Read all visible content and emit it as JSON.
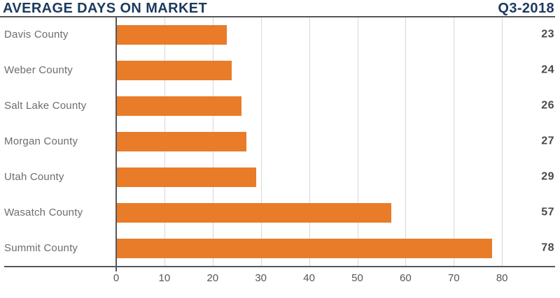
{
  "header": {
    "title": "AVERAGE DAYS ON MARKET",
    "period": "Q3-2018"
  },
  "chart_data": {
    "type": "bar",
    "orientation": "horizontal",
    "title": "AVERAGE DAYS ON MARKET",
    "subtitle": "Q3-2018",
    "categories": [
      "Davis County",
      "Weber County",
      "Salt Lake County",
      "Morgan County",
      "Utah County",
      "Wasatch County",
      "Summit County"
    ],
    "values": [
      23,
      24,
      26,
      27,
      29,
      57,
      78
    ],
    "value_labels": [
      "23",
      "24",
      "26",
      "27",
      "29",
      "57",
      "78"
    ],
    "xlabel": "",
    "ylabel": "",
    "xlim": [
      0,
      90
    ],
    "x_ticks": [
      0,
      10,
      20,
      30,
      40,
      50,
      60,
      70,
      80
    ],
    "grid": true,
    "legend": false
  },
  "colors": {
    "bar": "#e87c28",
    "navy_title": "#1c3a5f",
    "gridline": "#d7d8da",
    "axis_dark": "#56575b",
    "category_label": "#6c6d70",
    "value_label": "#48494b",
    "tick_label": "#55565a"
  }
}
